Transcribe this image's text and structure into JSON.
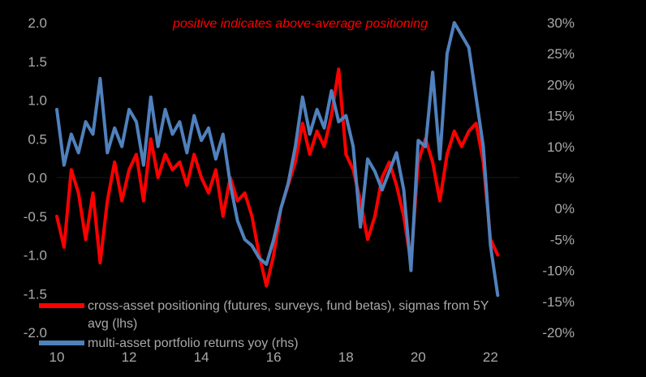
{
  "chart_data": {
    "type": "line",
    "annotation": "positive indicates above-average positioning",
    "x_tick_labels": [
      "10",
      "12",
      "14",
      "16",
      "18",
      "20",
      "22"
    ],
    "x_range": [
      2010,
      2022.8
    ],
    "y_left": {
      "range": [
        -2.0,
        2.0
      ],
      "ticks": [
        "2.0",
        "1.5",
        "1.0",
        "0.5",
        "0.0",
        "-0.5",
        "-1.0",
        "-1.5",
        "-2.0"
      ]
    },
    "y_right": {
      "range": [
        -20,
        30
      ],
      "ticks": [
        "30%",
        "25%",
        "20%",
        "15%",
        "10%",
        "5%",
        "0%",
        "-5%",
        "-10%",
        "-15%",
        "-20%"
      ]
    },
    "grid": false,
    "zero_line": true,
    "legend_placement": "bottom-left",
    "series": [
      {
        "name": "cross-asset positioning (futures, surveys, fund betas), sigmas from 5Y avg (lhs)",
        "axis": "left",
        "color": "#ff0000",
        "x": [
          2010.0,
          2010.2,
          2010.4,
          2010.6,
          2010.8,
          2011.0,
          2011.2,
          2011.4,
          2011.6,
          2011.8,
          2012.0,
          2012.2,
          2012.4,
          2012.6,
          2012.8,
          2013.0,
          2013.2,
          2013.4,
          2013.6,
          2013.8,
          2014.0,
          2014.2,
          2014.4,
          2014.6,
          2014.8,
          2015.0,
          2015.2,
          2015.4,
          2015.6,
          2015.8,
          2016.0,
          2016.2,
          2016.4,
          2016.6,
          2016.8,
          2017.0,
          2017.2,
          2017.4,
          2017.6,
          2017.8,
          2018.0,
          2018.2,
          2018.4,
          2018.6,
          2018.8,
          2019.0,
          2019.2,
          2019.4,
          2019.6,
          2019.8,
          2020.0,
          2020.2,
          2020.4,
          2020.6,
          2020.8,
          2021.0,
          2021.2,
          2021.4,
          2021.6,
          2021.8,
          2022.0,
          2022.2
        ],
        "values": [
          -0.5,
          -0.9,
          0.1,
          -0.2,
          -0.8,
          -0.2,
          -1.1,
          -0.3,
          0.2,
          -0.3,
          0.1,
          0.3,
          -0.3,
          0.5,
          0.0,
          0.3,
          0.1,
          0.2,
          -0.1,
          0.3,
          0.0,
          -0.2,
          0.1,
          -0.5,
          0.0,
          -0.3,
          -0.2,
          -0.5,
          -1.0,
          -1.4,
          -1.0,
          -0.4,
          -0.1,
          0.2,
          0.7,
          0.3,
          0.6,
          0.4,
          0.8,
          1.4,
          0.3,
          0.1,
          -0.3,
          -0.8,
          -0.5,
          0.0,
          0.2,
          -0.1,
          -0.5,
          -1.1,
          0.2,
          0.5,
          0.2,
          -0.3,
          0.3,
          0.6,
          0.4,
          0.6,
          0.7,
          0.2,
          -0.8,
          -1.0
        ]
      },
      {
        "name": "multi-asset portfolio returns yoy (rhs)",
        "axis": "right",
        "color": "#4f81bd",
        "x": [
          2010.0,
          2010.2,
          2010.4,
          2010.6,
          2010.8,
          2011.0,
          2011.2,
          2011.4,
          2011.6,
          2011.8,
          2012.0,
          2012.2,
          2012.4,
          2012.6,
          2012.8,
          2013.0,
          2013.2,
          2013.4,
          2013.6,
          2013.8,
          2014.0,
          2014.2,
          2014.4,
          2014.6,
          2014.8,
          2015.0,
          2015.2,
          2015.4,
          2015.6,
          2015.8,
          2016.0,
          2016.2,
          2016.4,
          2016.6,
          2016.8,
          2017.0,
          2017.2,
          2017.4,
          2017.6,
          2017.8,
          2018.0,
          2018.2,
          2018.4,
          2018.6,
          2018.8,
          2019.0,
          2019.2,
          2019.4,
          2019.6,
          2019.8,
          2020.0,
          2020.2,
          2020.4,
          2020.6,
          2020.8,
          2021.0,
          2021.2,
          2021.4,
          2021.6,
          2021.8,
          2022.0,
          2022.2
        ],
        "values": [
          16,
          7,
          12,
          9,
          14,
          12,
          21,
          9,
          13,
          10,
          16,
          14,
          7,
          18,
          10,
          16,
          12,
          14,
          9,
          15,
          11,
          13,
          8,
          12,
          4,
          -2,
          -5,
          -6,
          -8,
          -9,
          -5,
          0,
          4,
          10,
          18,
          12,
          16,
          13,
          19,
          14,
          15,
          10,
          -3,
          8,
          6,
          3,
          6,
          9,
          3,
          -10,
          11,
          10,
          22,
          8,
          25,
          30,
          28,
          26,
          18,
          10,
          -6,
          -14
        ]
      }
    ]
  }
}
